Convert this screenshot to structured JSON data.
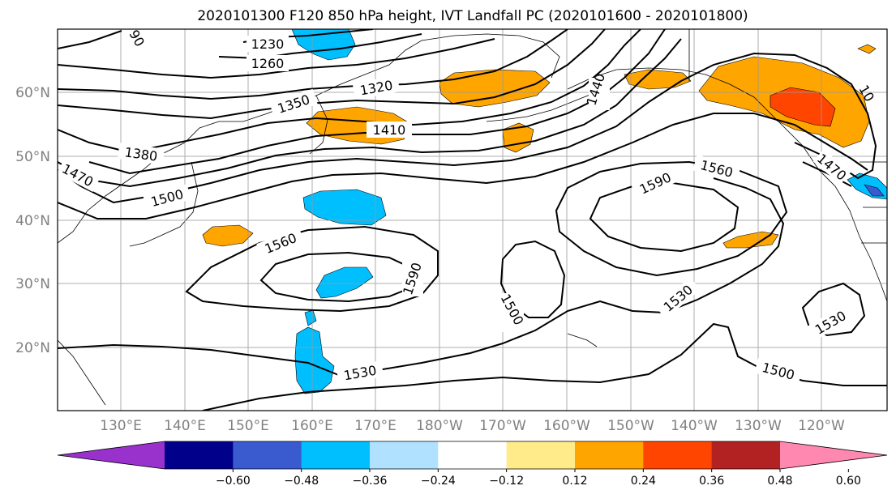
{
  "title": "2020101300 F120 850 hPa height, IVT Landfall PC (2020101600 - 2020101800)",
  "lat_labels": [
    "60°N",
    "50°N",
    "40°N",
    "30°N",
    "20°N"
  ],
  "lon_labels": [
    "130°E",
    "140°E",
    "150°E",
    "160°E",
    "170°E",
    "180°W",
    "170°W",
    "160°W",
    "150°W",
    "140°W",
    "130°W",
    "120°W"
  ],
  "contour_labels": [
    "1230",
    "1260",
    "90",
    "1320",
    "1350",
    "1380",
    "1410",
    "1440",
    "1470",
    "1500",
    "1560",
    "1590",
    "1560",
    "1590",
    "1500",
    "1530",
    "1530",
    "1530",
    "1500",
    "1470",
    "10"
  ],
  "colorbar": {
    "ticks": [
      "−0.60",
      "−0.48",
      "−0.36",
      "−0.24",
      "−0.12",
      "0.12",
      "0.24",
      "0.36",
      "0.48",
      "0.60"
    ],
    "colors": [
      "#9932cc",
      "#00008b",
      "#3a5bcf",
      "#00bfff",
      "#b0e2ff",
      "#ffffff",
      "#ffeb8a",
      "#ffa500",
      "#ff4500",
      "#b22222",
      "#ff88b0"
    ]
  },
  "colors": {
    "contour": "#000000",
    "grid": "#9a9a9a",
    "axis_label": "#808080"
  }
}
